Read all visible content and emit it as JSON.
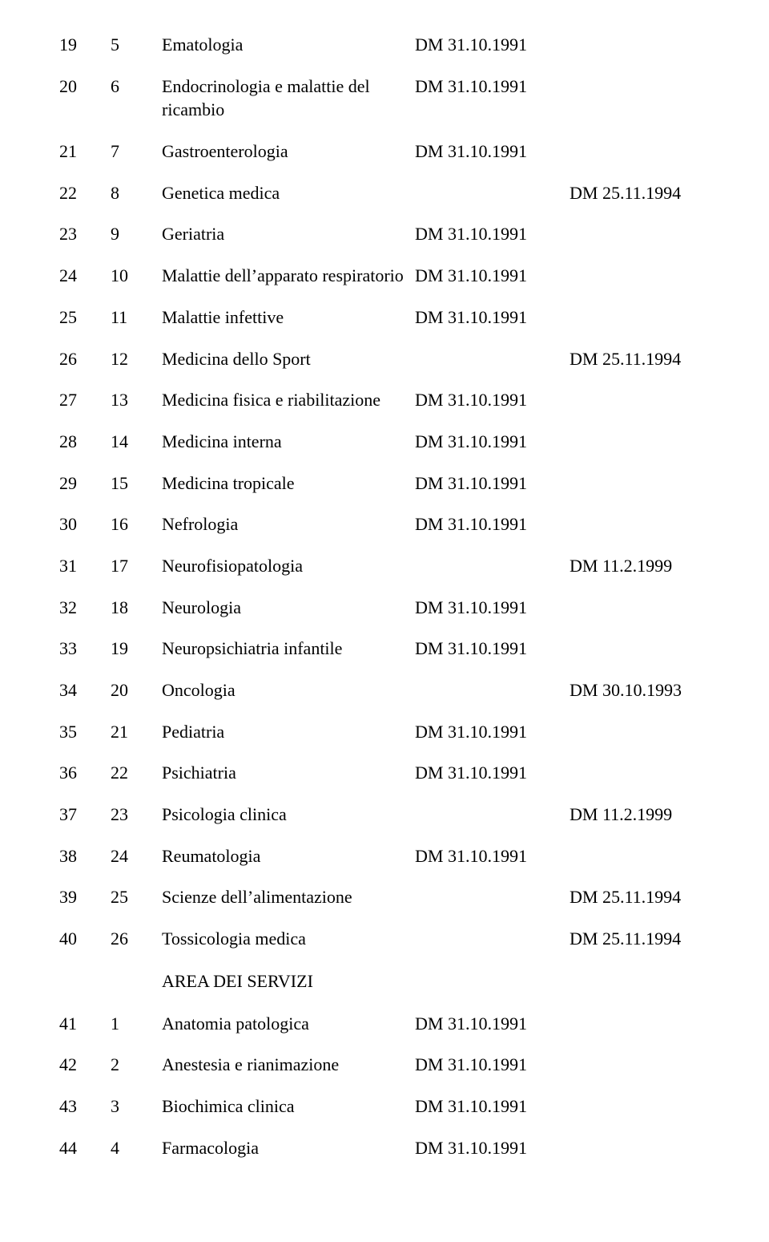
{
  "area_heading": "AREA DEI SERVIZI",
  "rows": [
    {
      "a": "19",
      "b": "5",
      "name": "Ematologia",
      "dm1": "DM 31.10.1991",
      "dm2": ""
    },
    {
      "a": "20",
      "b": "6",
      "name": "Endocrinologia e malattie del ricambio",
      "dm1": "DM 31.10.1991",
      "dm2": ""
    },
    {
      "a": "21",
      "b": "7",
      "name": "Gastroenterologia",
      "dm1": "DM 31.10.1991",
      "dm2": ""
    },
    {
      "a": "22",
      "b": "8",
      "name": "Genetica medica",
      "dm1": "",
      "dm2": "DM 25.11.1994"
    },
    {
      "a": "23",
      "b": "9",
      "name": "Geriatria",
      "dm1": "DM 31.10.1991",
      "dm2": ""
    },
    {
      "a": "24",
      "b": "10",
      "name": "Malattie dell’apparato respiratorio",
      "dm1": "DM 31.10.1991",
      "dm2": ""
    },
    {
      "a": "25",
      "b": "11",
      "name": "Malattie infettive",
      "dm1": "DM 31.10.1991",
      "dm2": ""
    },
    {
      "a": "26",
      "b": "12",
      "name": "Medicina dello Sport",
      "dm1": "",
      "dm2": "DM 25.11.1994"
    },
    {
      "a": "27",
      "b": "13",
      "name": "Medicina fisica e riabilitazione",
      "dm1": "DM 31.10.1991",
      "dm2": ""
    },
    {
      "a": "28",
      "b": "14",
      "name": "Medicina interna",
      "dm1": "DM 31.10.1991",
      "dm2": ""
    },
    {
      "a": "29",
      "b": "15",
      "name": "Medicina tropicale",
      "dm1": "DM 31.10.1991",
      "dm2": ""
    },
    {
      "a": "30",
      "b": "16",
      "name": "Nefrologia",
      "dm1": "DM 31.10.1991",
      "dm2": ""
    },
    {
      "a": "31",
      "b": "17",
      "name": "Neurofisiopatologia",
      "dm1": "",
      "dm2": "DM 11.2.1999"
    },
    {
      "a": "32",
      "b": "18",
      "name": "Neurologia",
      "dm1": "DM 31.10.1991",
      "dm2": ""
    },
    {
      "a": "33",
      "b": "19",
      "name": "Neuropsichiatria infantile",
      "dm1": "DM 31.10.1991",
      "dm2": ""
    },
    {
      "a": "34",
      "b": "20",
      "name": "Oncologia",
      "dm1": "",
      "dm2": "DM 30.10.1993"
    },
    {
      "a": "35",
      "b": "21",
      "name": "Pediatria",
      "dm1": "DM 31.10.1991",
      "dm2": ""
    },
    {
      "a": "36",
      "b": "22",
      "name": "Psichiatria",
      "dm1": "DM 31.10.1991",
      "dm2": ""
    },
    {
      "a": "37",
      "b": "23",
      "name": "Psicologia clinica",
      "dm1": "",
      "dm2": "DM 11.2.1999"
    },
    {
      "a": "38",
      "b": "24",
      "name": "Reumatologia",
      "dm1": "DM 31.10.1991",
      "dm2": ""
    },
    {
      "a": "39",
      "b": "25",
      "name": "Scienze dell’alimentazione",
      "dm1": "",
      "dm2": "DM 25.11.1994"
    },
    {
      "a": "40",
      "b": "26",
      "name": "Tossicologia medica",
      "dm1": "",
      "dm2": "DM 25.11.1994"
    }
  ],
  "rows2": [
    {
      "a": "41",
      "b": "1",
      "name": "Anatomia patologica",
      "dm1": "DM 31.10.1991",
      "dm2": ""
    },
    {
      "a": "42",
      "b": "2",
      "name": "Anestesia e rianimazione",
      "dm1": "DM 31.10.1991",
      "dm2": ""
    },
    {
      "a": "43",
      "b": "3",
      "name": "Biochimica clinica",
      "dm1": "DM 31.10.1991",
      "dm2": ""
    },
    {
      "a": "44",
      "b": "4",
      "name": "Farmacologia",
      "dm1": "DM 31.10.1991",
      "dm2": ""
    }
  ]
}
